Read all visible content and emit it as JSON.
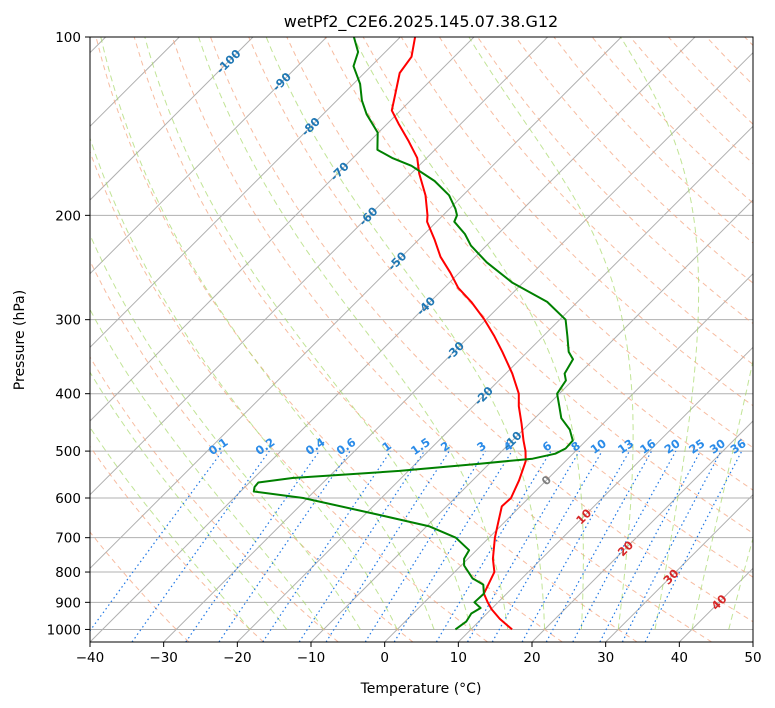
{
  "chart_data": {
    "type": "line",
    "title": "wetPf2_C2E6.2025.145.07.38.G12",
    "xlabel": "Temperature (°C)",
    "ylabel": "Pressure (hPa)",
    "xlim": [
      -40,
      50
    ],
    "ylim": [
      1050,
      100
    ],
    "y_scale": "log",
    "grid": true,
    "skew_t": true,
    "x_ticks": [
      -40,
      -30,
      -20,
      -10,
      0,
      10,
      20,
      30,
      40,
      50
    ],
    "x_tick_labels": [
      "−40",
      "−30",
      "−20",
      "−10",
      "0",
      "10",
      "20",
      "30",
      "40",
      "50"
    ],
    "y_ticks": [
      1000,
      900,
      800,
      700,
      600,
      500,
      400,
      300,
      200,
      100
    ],
    "y_tick_labels": [
      "1000",
      "900",
      "800",
      "700",
      "600",
      "500",
      "400",
      "300",
      "200",
      "100"
    ],
    "series": [
      {
        "color": "#ff0000",
        "p": [
          1000,
          960,
          925,
          900,
          870,
          850,
          800,
          760,
          700,
          660,
          620,
          600,
          560,
          520,
          500,
          480,
          450,
          420,
          400,
          370,
          340,
          320,
          300,
          280,
          265,
          250,
          235,
          220,
          205,
          200,
          185,
          170,
          160,
          150,
          140,
          133,
          125,
          115,
          108,
          100
        ],
        "t": [
          15.6,
          12.5,
          10.1,
          8.6,
          6.9,
          6.5,
          5.4,
          3.4,
          0.8,
          -0.8,
          -2.5,
          -2.4,
          -3.7,
          -5.4,
          -6.8,
          -8.5,
          -11.0,
          -13.8,
          -15.5,
          -19.1,
          -23.4,
          -26.6,
          -30.2,
          -34.4,
          -38.1,
          -41.2,
          -44.7,
          -47.8,
          -51.3,
          -52.1,
          -55.1,
          -58.9,
          -61.3,
          -64.7,
          -68.5,
          -71.2,
          -72.9,
          -75.2,
          -75.8,
          -78.0
        ]
      },
      {
        "color": "#008000",
        "p": [
          1000,
          970,
          940,
          920,
          900,
          870,
          840,
          820,
          780,
          760,
          735,
          700,
          670,
          640,
          600,
          585,
          575,
          565,
          555,
          540,
          525,
          515,
          505,
          495,
          480,
          460,
          440,
          420,
          400,
          380,
          370,
          350,
          340,
          320,
          300,
          280,
          260,
          240,
          225,
          215,
          205,
          200,
          195,
          185,
          175,
          165,
          160,
          155,
          145,
          135,
          128,
          120,
          112,
          106,
          100
        ],
        "t": [
          7.9,
          8.3,
          7.9,
          8.4,
          6.8,
          6.9,
          5.6,
          3.3,
          0.4,
          -0.5,
          -1.0,
          -4.5,
          -9.6,
          -18.2,
          -30.6,
          -38.2,
          -38.7,
          -38.8,
          -34.8,
          -21.2,
          -11.3,
          -4.8,
          -2.4,
          -1.7,
          -1.8,
          -3.7,
          -6.4,
          -8.3,
          -10.3,
          -10.9,
          -12.0,
          -12.8,
          -14.4,
          -16.7,
          -19.2,
          -24.1,
          -31.4,
          -37.7,
          -42.1,
          -44.5,
          -47.6,
          -48.1,
          -49.2,
          -51.9,
          -55.8,
          -61.0,
          -64.7,
          -67.8,
          -70.1,
          -74.1,
          -76.6,
          -79.1,
          -82.4,
          -83.7,
          -86.3
        ]
      }
    ],
    "isotherm_labels": [
      "-100",
      "-90",
      "-80",
      "-70",
      "-60",
      "-50",
      "-40",
      "-30",
      "-20",
      "-10",
      "0",
      "10",
      "20",
      "30",
      "40"
    ],
    "mixing_ratio_labels": [
      "0.1",
      "0.2",
      "0.4",
      "0.6",
      "1",
      "1.5",
      "2",
      "3",
      "4",
      "6",
      "8",
      "10",
      "13",
      "16",
      "20",
      "25",
      "30",
      "36"
    ]
  }
}
